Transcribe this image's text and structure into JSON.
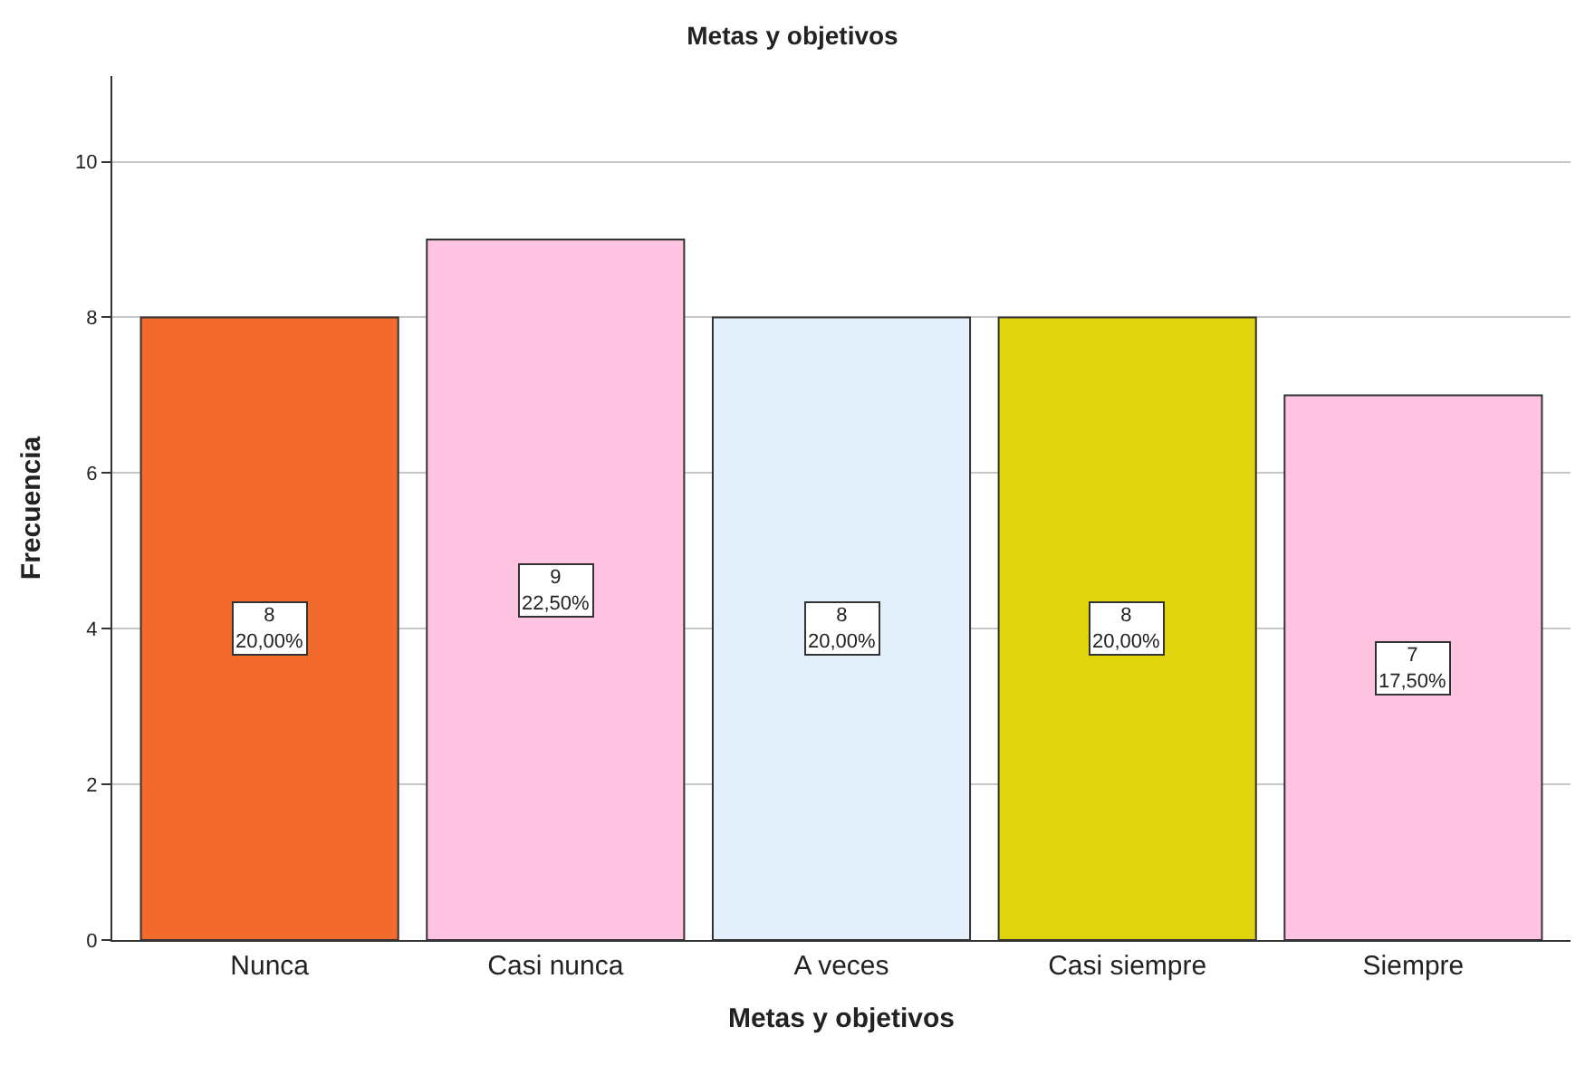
{
  "chart_data": {
    "type": "bar",
    "title": "Metas y objetivos",
    "xlabel": "Metas y objetivos",
    "ylabel": "Frecuencia",
    "categories": [
      "Nunca",
      "Casi nunca",
      "A veces",
      "Casi siempre",
      "Siempre"
    ],
    "values": [
      8,
      9,
      8,
      8,
      7
    ],
    "colors": [
      "#f26b2c",
      "#ffc4e2",
      "#e3effa",
      "#e0d40c",
      "#ffc4e2"
    ],
    "value_labels": [
      "8\n20,00%",
      "9\n22,50%",
      "8\n20,00%",
      "8\n20,00%",
      "7\n17,50%"
    ],
    "ylim": [
      0,
      11.1
    ],
    "yticks": [
      0,
      2,
      4,
      6,
      8,
      10
    ],
    "grid": "y"
  }
}
